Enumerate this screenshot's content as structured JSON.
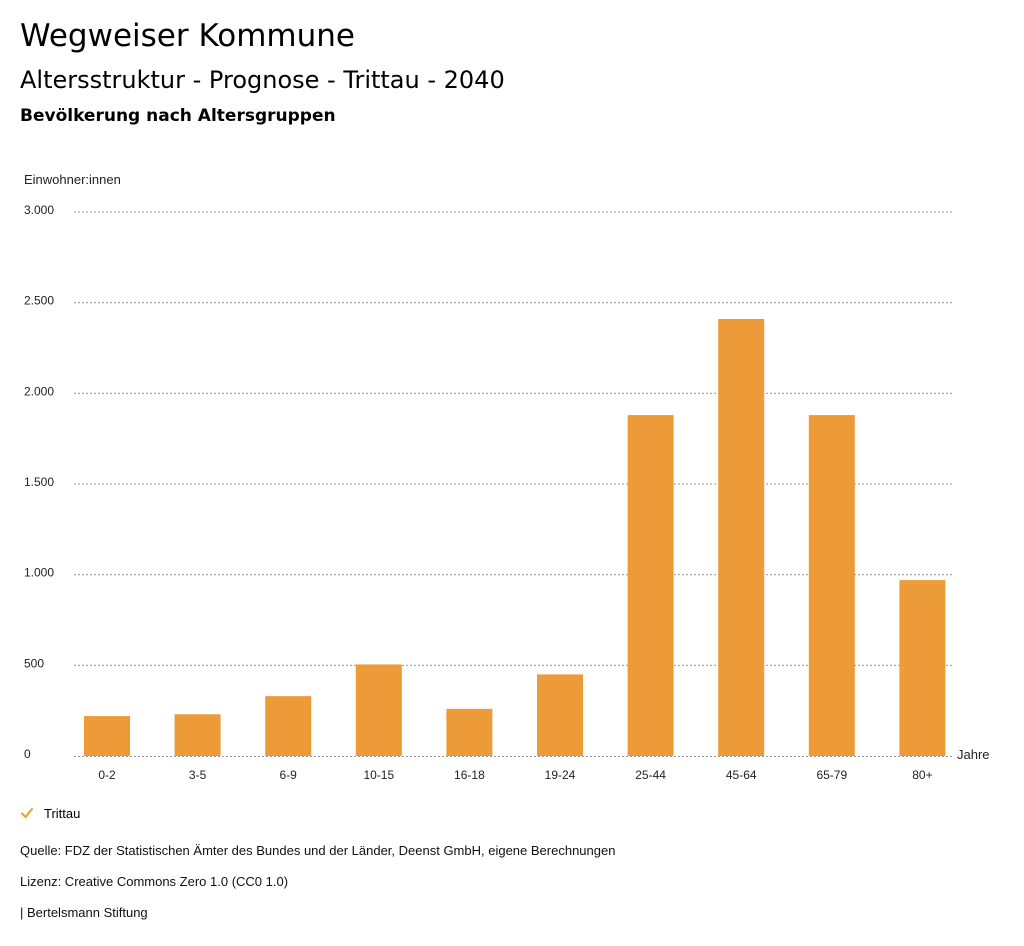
{
  "header": {
    "title": "Wegweiser Kommune",
    "subtitle": "Altersstruktur - Prognose - Trittau - 2040",
    "description": "Bevölkerung nach Altersgruppen"
  },
  "chart_data": {
    "type": "bar",
    "y_axis_title": "Einwohner:innen",
    "x_axis_title": "Jahre",
    "categories": [
      "0-2",
      "3-5",
      "6-9",
      "10-15",
      "16-18",
      "19-24",
      "25-44",
      "45-64",
      "65-79",
      "80+"
    ],
    "series": [
      {
        "name": "Trittau",
        "color": "#ed9a38",
        "values": [
          220,
          230,
          330,
          505,
          260,
          450,
          1880,
          2410,
          1880,
          970
        ]
      }
    ],
    "ylim": [
      0,
      3000
    ],
    "y_ticks": [
      0,
      500,
      1000,
      1500,
      2000,
      2500,
      3000
    ],
    "y_tick_labels": [
      "0",
      "500",
      "1.000",
      "1.500",
      "2.000",
      "2.500",
      "3.000"
    ],
    "grid": true,
    "legend_position": "bottom-left"
  },
  "legend": {
    "icon": "check-icon",
    "label": "Trittau"
  },
  "footer": {
    "source": "Quelle: FDZ der Statistischen Ämter des Bundes und der Länder, Deenst GmbH, eigene Berechnungen",
    "license": "Lizenz: Creative Commons Zero 1.0 (CC0 1.0)",
    "publisher": "| Bertelsmann Stiftung"
  }
}
